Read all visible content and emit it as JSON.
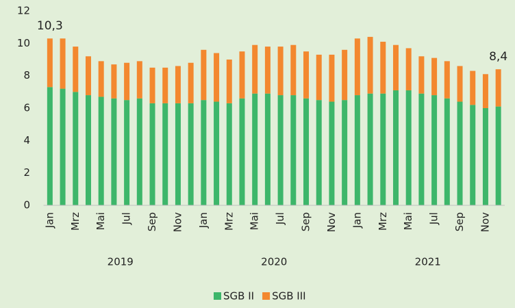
{
  "chart_data": {
    "type": "stacked_bar",
    "categories": [
      "Jan",
      null,
      "Mrz",
      null,
      "Mai",
      null,
      "Jul",
      null,
      "Sep",
      null,
      "Nov",
      null,
      "Jan",
      null,
      "Mrz",
      null,
      "Mai",
      null,
      "Jul",
      null,
      "Sep",
      null,
      "Nov",
      null,
      "Jan",
      null,
      "Mrz",
      null,
      "Mai",
      null,
      "Jul",
      null,
      "Sep",
      null,
      "Nov",
      null
    ],
    "year_labels": [
      "2019",
      "2020",
      "2021"
    ],
    "series": [
      {
        "name": "SGB II",
        "color": "#3db66a",
        "values": [
          7.3,
          7.2,
          7.0,
          6.8,
          6.7,
          6.6,
          6.5,
          6.6,
          6.3,
          6.3,
          6.3,
          6.3,
          6.5,
          6.4,
          6.3,
          6.6,
          6.9,
          6.9,
          6.8,
          6.8,
          6.6,
          6.5,
          6.4,
          6.5,
          6.8,
          6.9,
          6.9,
          7.1,
          7.1,
          6.9,
          6.8,
          6.6,
          6.4,
          6.2,
          6.0,
          6.1
        ]
      },
      {
        "name": "SGB III",
        "color": "#f3882f",
        "values": [
          3.0,
          3.1,
          2.8,
          2.4,
          2.2,
          2.1,
          2.3,
          2.3,
          2.2,
          2.2,
          2.3,
          2.5,
          3.1,
          3.0,
          2.7,
          2.9,
          3.0,
          2.9,
          3.0,
          3.1,
          2.9,
          2.8,
          2.9,
          3.1,
          3.5,
          3.5,
          3.2,
          2.8,
          2.6,
          2.3,
          2.3,
          2.3,
          2.2,
          2.1,
          2.1,
          2.3
        ]
      }
    ],
    "annotations": [
      {
        "index": 0,
        "label": "10,3"
      },
      {
        "index": 35,
        "label": "8,4"
      }
    ],
    "ylim": [
      0,
      12
    ],
    "yticks": [
      0,
      2,
      4,
      6,
      8,
      10,
      12
    ],
    "grid": false,
    "legend": "bottom"
  }
}
